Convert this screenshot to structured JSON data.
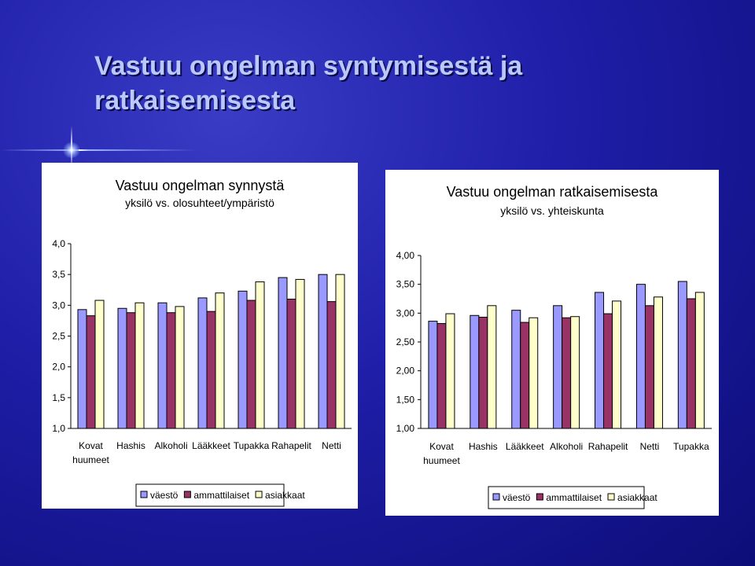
{
  "slide": {
    "title_line1": "Vastuu ongelman syntymisestä ja",
    "title_line2": "ratkaisemisesta"
  },
  "colors": {
    "väestö": "#9999ff",
    "ammattilaiset": "#993366",
    "asiakkaat": "#ffffcc"
  },
  "chart_data": [
    {
      "type": "bar",
      "title": "Vastuu ongelman synnystä",
      "subtitle": "yksilö vs. olosuhteet/ympäristö",
      "categories": [
        "Kovat\nhuumeet",
        "Hashis",
        "Alkoholi",
        "Lääkkeet",
        "Tupakka",
        "Rahapelit",
        "Netti"
      ],
      "series": [
        {
          "name": "väestö",
          "values": [
            2.93,
            2.95,
            3.04,
            3.12,
            3.23,
            3.45,
            3.5
          ]
        },
        {
          "name": "ammattilaiset",
          "values": [
            2.83,
            2.88,
            2.88,
            2.9,
            3.08,
            3.1,
            3.06
          ]
        },
        {
          "name": "asiakkaat",
          "values": [
            3.08,
            3.04,
            2.98,
            3.2,
            3.38,
            3.42,
            3.5
          ]
        }
      ],
      "ylim": [
        1.0,
        4.0
      ],
      "yticks": [
        "1,0",
        "1,5",
        "2,0",
        "2,5",
        "3,0",
        "3,5",
        "4,0"
      ],
      "legend": "bottom",
      "grid": false
    },
    {
      "type": "bar",
      "title": "Vastuu ongelman ratkaisemisesta",
      "subtitle": "yksilö vs. yhteiskunta",
      "categories": [
        "Kovat\nhuumeet",
        "Hashis",
        "Lääkkeet",
        "Alkoholi",
        "Rahapelit",
        "Netti",
        "Tupakka"
      ],
      "series": [
        {
          "name": "väestö",
          "values": [
            2.86,
            2.96,
            3.05,
            3.13,
            3.36,
            3.5,
            3.55
          ]
        },
        {
          "name": "ammattilaiset",
          "values": [
            2.82,
            2.93,
            2.84,
            2.92,
            2.99,
            3.13,
            3.25
          ]
        },
        {
          "name": "asiakkaat",
          "values": [
            2.99,
            3.13,
            2.92,
            2.94,
            3.21,
            3.28,
            3.36
          ]
        }
      ],
      "ylim": [
        1.0,
        4.0
      ],
      "yticks": [
        "1,00",
        "1,50",
        "2,00",
        "2,50",
        "3,00",
        "3,50",
        "4,00"
      ],
      "legend": "bottom",
      "grid": false
    }
  ]
}
